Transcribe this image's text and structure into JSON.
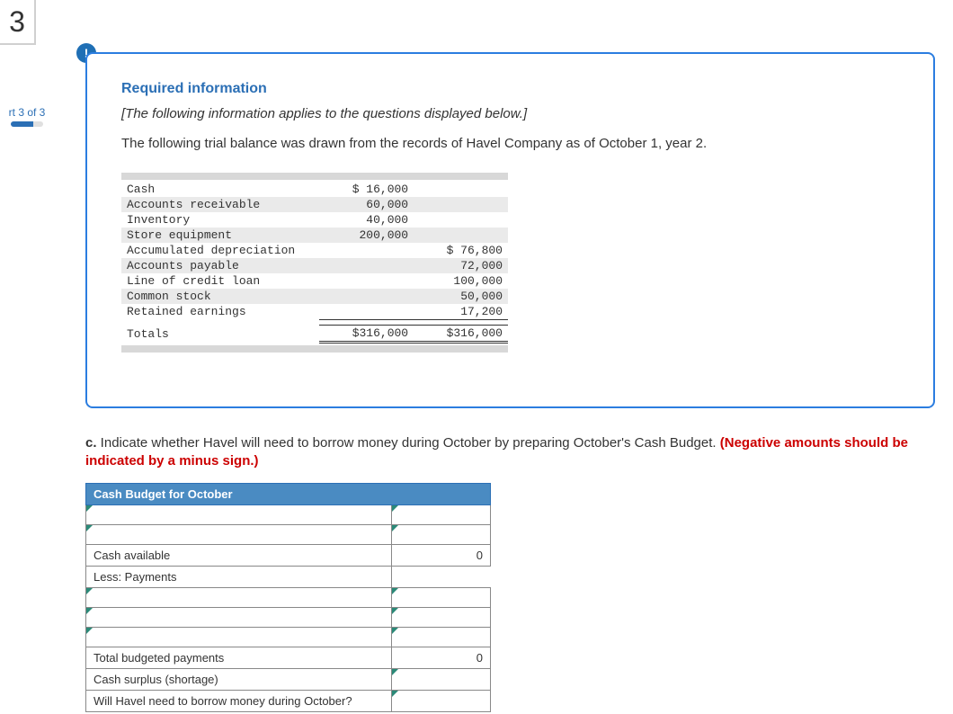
{
  "question_number": "3",
  "part_label": "rt 3 of 3",
  "alert_glyph": "!",
  "info": {
    "title": "Required information",
    "note": "[The following information applies to the questions displayed below.]",
    "body": "The following trial balance was drawn from the records of Havel Company as of October 1, year 2."
  },
  "trial_balance": {
    "rows": [
      {
        "name": "Cash",
        "debit": "$ 16,000",
        "credit": ""
      },
      {
        "name": "Accounts receivable",
        "debit": "60,000",
        "credit": ""
      },
      {
        "name": "Inventory",
        "debit": "40,000",
        "credit": ""
      },
      {
        "name": "Store equipment",
        "debit": "200,000",
        "credit": ""
      },
      {
        "name": "Accumulated depreciation",
        "debit": "",
        "credit": "$ 76,800"
      },
      {
        "name": "Accounts payable",
        "debit": "",
        "credit": "72,000"
      },
      {
        "name": "Line of credit loan",
        "debit": "",
        "credit": "100,000"
      },
      {
        "name": "Common stock",
        "debit": "",
        "credit": "50,000"
      },
      {
        "name": "Retained earnings",
        "debit": "",
        "credit": "17,200"
      }
    ],
    "totals": {
      "name": "Totals",
      "debit": "$316,000",
      "credit": "$316,000"
    }
  },
  "question_c": {
    "prefix_bold": "c.",
    "body": " Indicate whether Havel will need to borrow money during October by preparing October's Cash Budget. ",
    "red": "(Negative amounts should be indicated by a minus sign.)"
  },
  "budget": {
    "header": "Cash Budget for October",
    "rows": [
      {
        "label": "",
        "value": "",
        "label_editable": true,
        "value_editable": true
      },
      {
        "label": "",
        "value": "",
        "label_editable": true,
        "value_editable": true
      },
      {
        "label": "Cash available",
        "value": "0",
        "label_editable": false,
        "value_editable": false
      },
      {
        "label": "Less: Payments",
        "value": "",
        "label_editable": false,
        "value_editable": false,
        "value_hidden": true
      },
      {
        "label": "",
        "value": "",
        "label_editable": true,
        "value_editable": true
      },
      {
        "label": "",
        "value": "",
        "label_editable": true,
        "value_editable": true
      },
      {
        "label": "",
        "value": "",
        "label_editable": true,
        "value_editable": true
      },
      {
        "label": "Total budgeted payments",
        "value": "0",
        "label_editable": false,
        "value_editable": false
      },
      {
        "label": "Cash surplus (shortage)",
        "value": "",
        "label_editable": false,
        "value_editable": true
      },
      {
        "label": "Will Havel need to borrow money during October?",
        "value": "",
        "label_editable": false,
        "value_editable": true
      }
    ]
  },
  "colors": {
    "brand_blue": "#2b6fb5",
    "box_border": "#2b7de0",
    "table_header_bg": "#4a8bc2",
    "triangle": "#2b8a78",
    "red": "#c00"
  }
}
